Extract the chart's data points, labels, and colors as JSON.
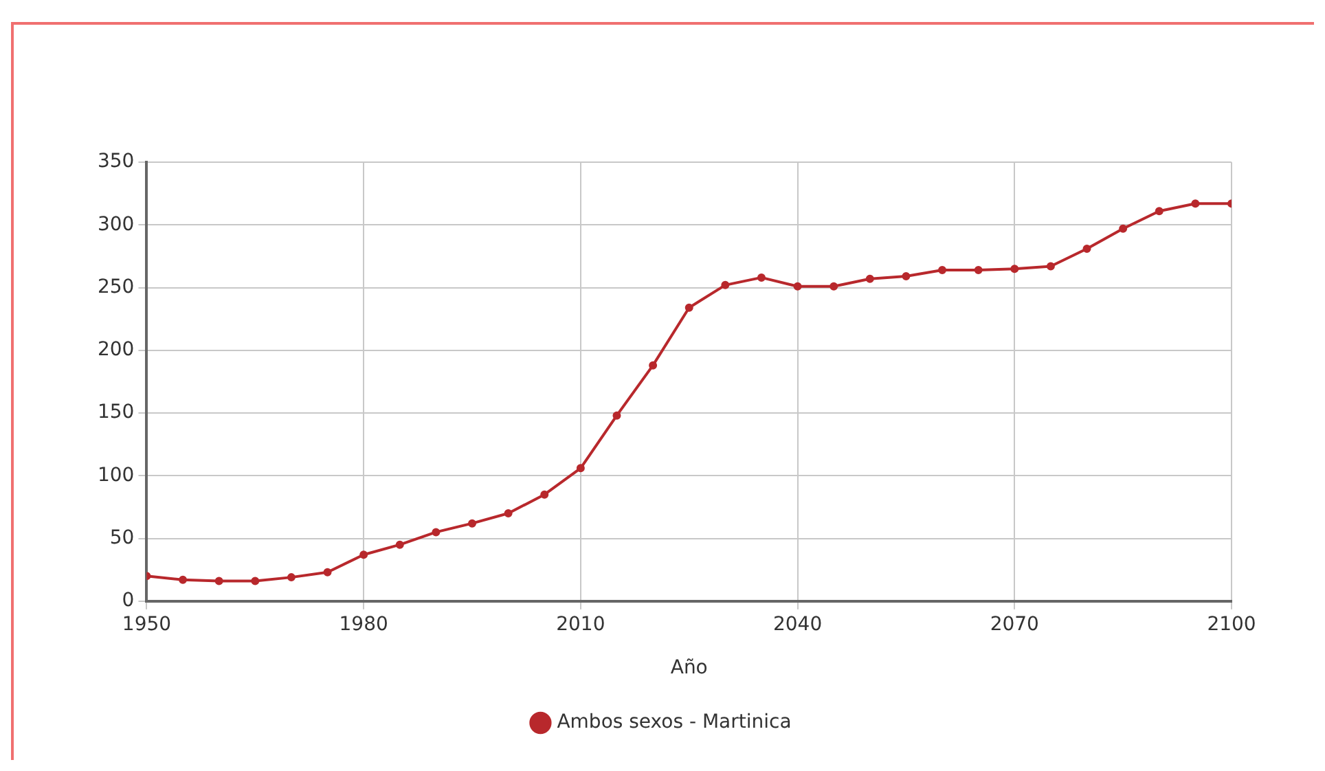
{
  "chart_data": {
    "type": "line",
    "xlabel": "Año",
    "x": [
      1950,
      1955,
      1960,
      1965,
      1970,
      1975,
      1980,
      1985,
      1990,
      1995,
      2000,
      2005,
      2010,
      2015,
      2020,
      2025,
      2030,
      2035,
      2040,
      2045,
      2050,
      2055,
      2060,
      2065,
      2070,
      2075,
      2080,
      2085,
      2090,
      2095,
      2100
    ],
    "series": [
      {
        "name": "Ambos sexos - Martinica",
        "color": "#b8282c",
        "values": [
          20,
          17,
          16,
          16,
          19,
          23,
          37,
          45,
          55,
          62,
          70,
          85,
          106,
          148,
          188,
          234,
          252,
          258,
          251,
          251,
          257,
          259,
          264,
          264,
          265,
          267,
          281,
          297,
          311,
          317,
          317
        ]
      }
    ],
    "xlim": [
      1950,
      2100
    ],
    "xticks": [
      1950,
      1980,
      2010,
      2040,
      2070,
      2100
    ],
    "ylim": [
      0,
      350
    ],
    "yticks": [
      0,
      50,
      100,
      150,
      200,
      250,
      300,
      350
    ],
    "grid": true,
    "legend": "bottom",
    "marker": "circle",
    "line_style": "solid"
  }
}
